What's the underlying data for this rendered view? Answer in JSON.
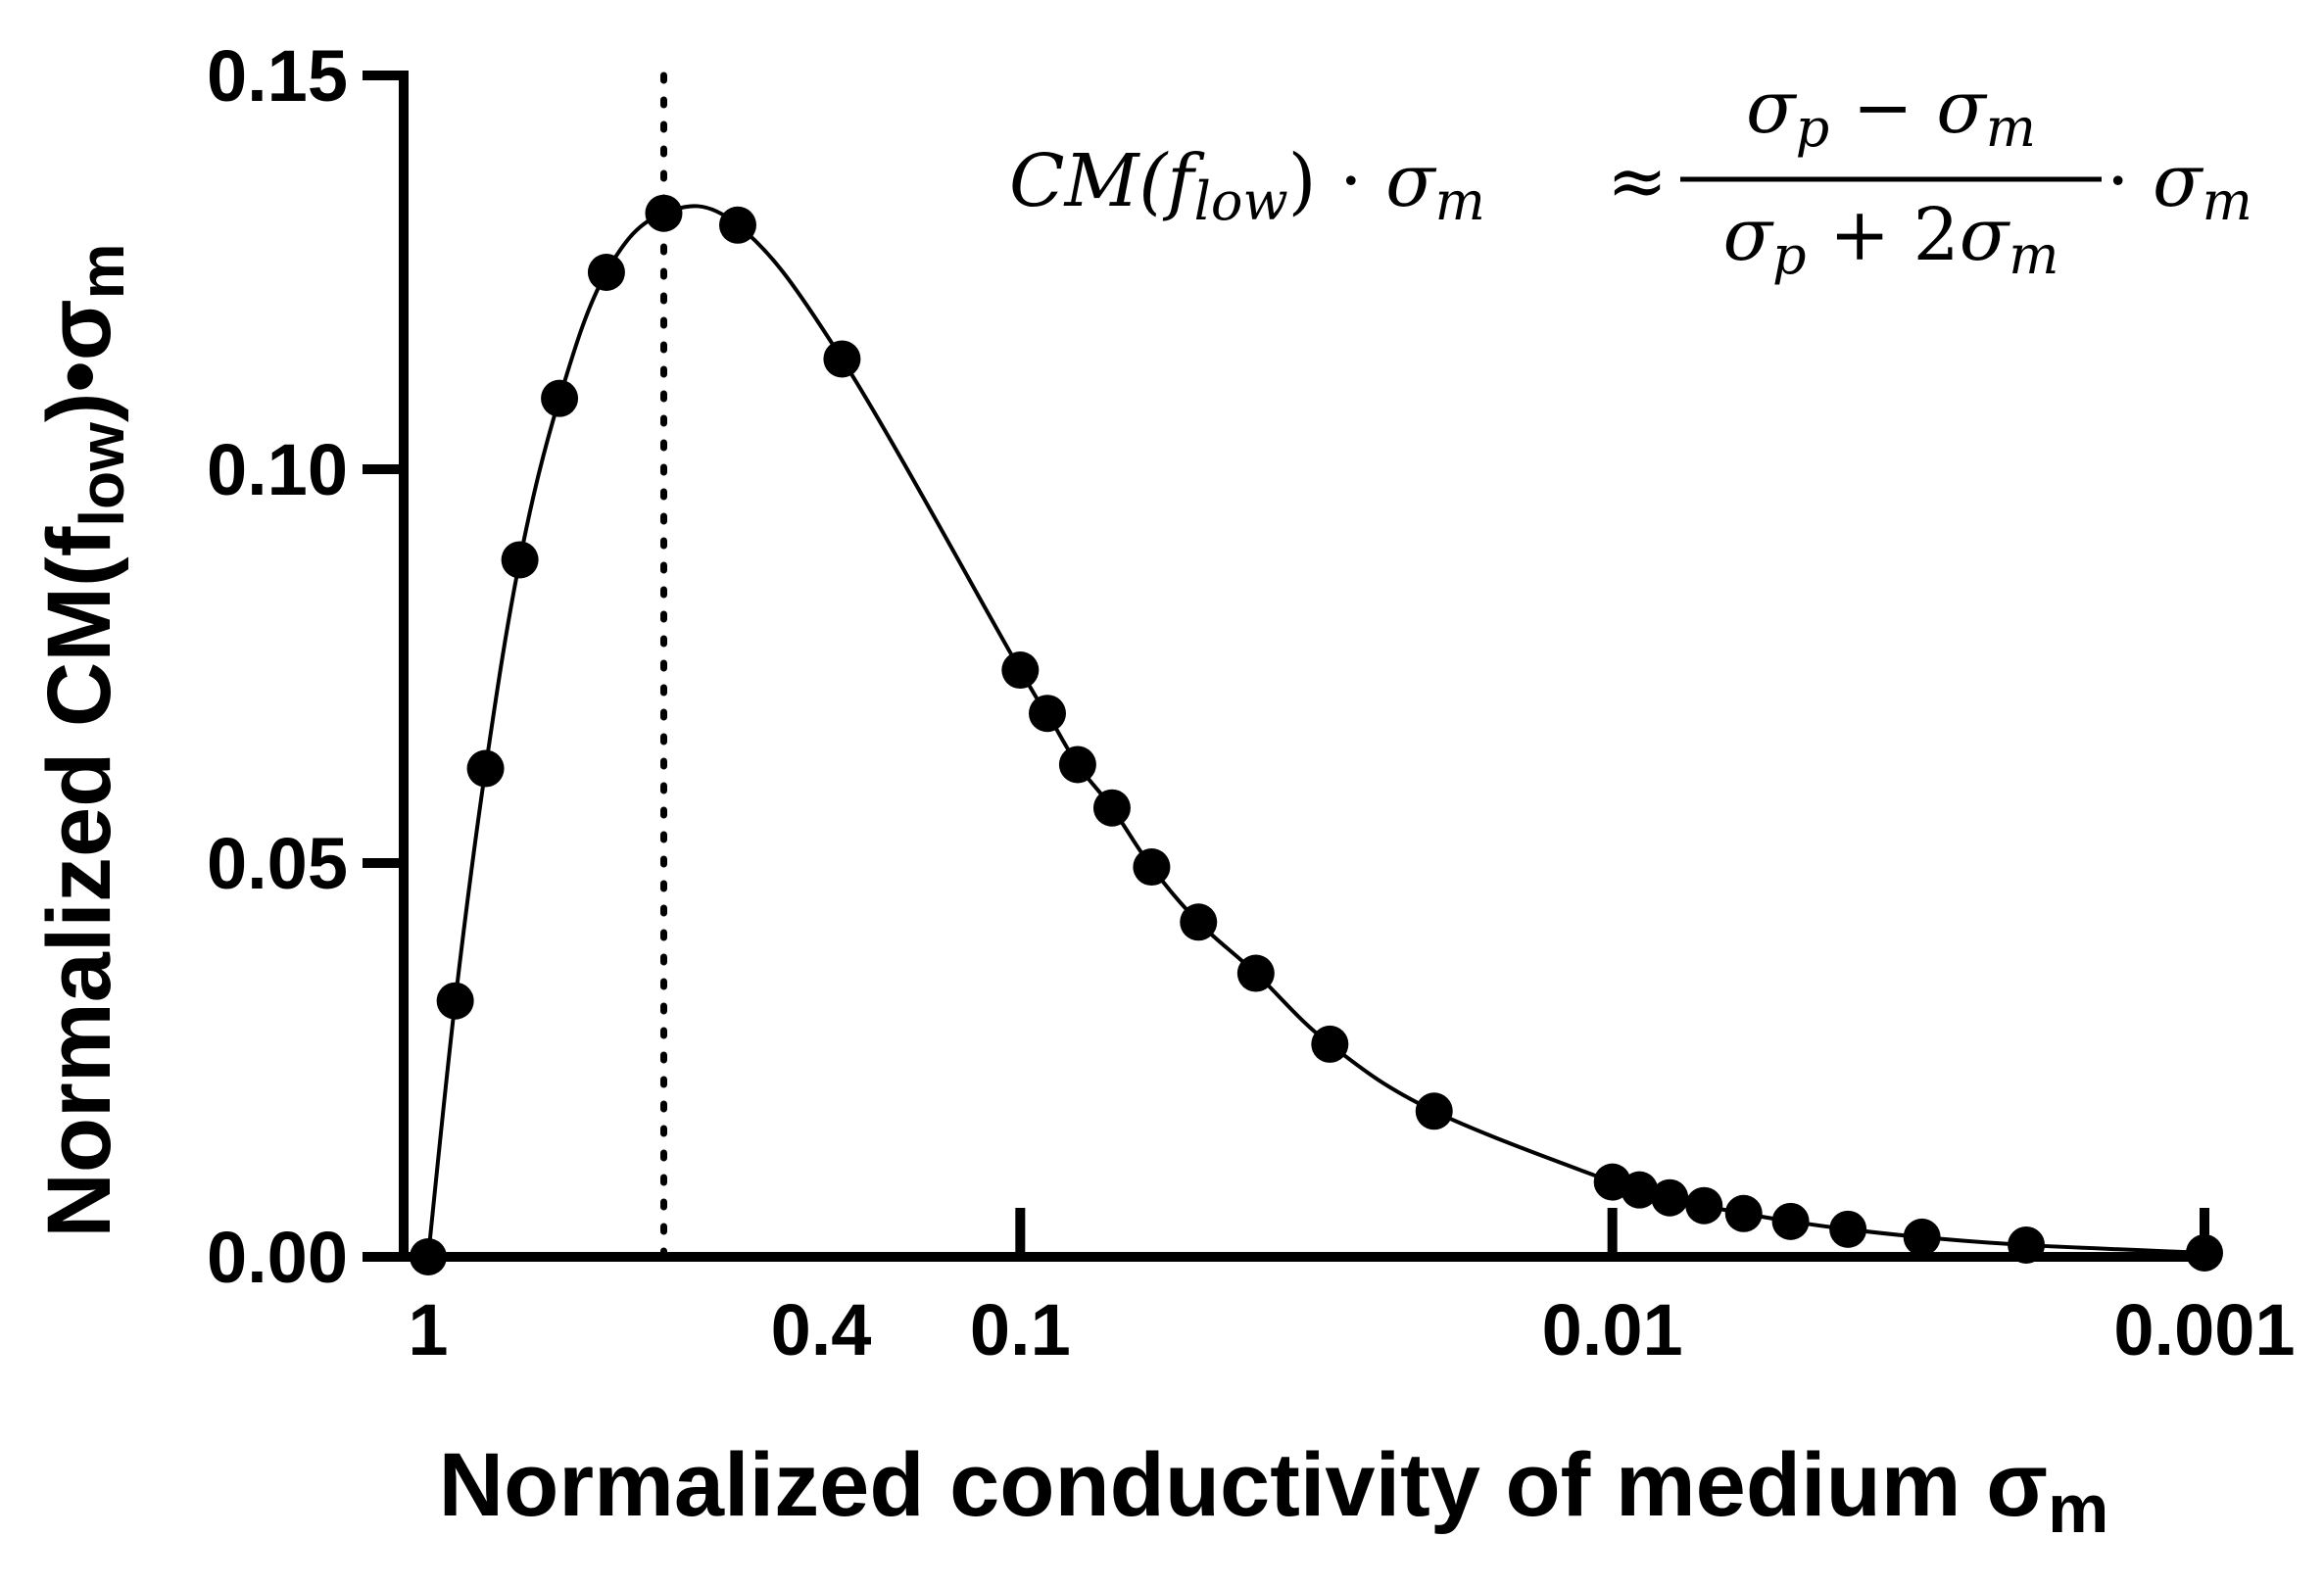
{
  "chart_data": {
    "type": "scatter",
    "title": "",
    "xlabel": "Normalized conductivity of medium",
    "xlabel_symbol": "σ",
    "xlabel_sub": "m",
    "ylabel_parts": {
      "pre": "Normalized CM(f",
      "sub1": "low",
      "mid": ")•σ",
      "sub2": "m"
    },
    "x_scale": "log-reversed",
    "xlim": [
      1,
      0.001
    ],
    "ylim": [
      0,
      0.15
    ],
    "x_ticks": [
      {
        "value": 1,
        "label": "1"
      },
      {
        "value": 0.4,
        "label": "0.4"
      },
      {
        "value": 0.1,
        "label": "0.1"
      },
      {
        "value": 0.01,
        "label": "0.01"
      },
      {
        "value": 0.001,
        "label": "0.001"
      }
    ],
    "y_ticks": [
      {
        "value": 0,
        "label": "0.00"
      },
      {
        "value": 0.05,
        "label": "0.05"
      },
      {
        "value": 0.1,
        "label": "0.10"
      },
      {
        "value": 0.15,
        "label": "0.15"
      }
    ],
    "reference_line": {
      "x": 0.4,
      "style": "dotted"
    },
    "series": [
      {
        "name": "Normalized CM(f_low)·σm",
        "x": [
          1,
          0.9,
          0.8,
          0.7,
          0.6,
          0.5,
          0.4,
          0.3,
          0.2,
          0.1,
          0.09,
          0.08,
          0.07,
          0.06,
          0.05,
          0.04,
          0.03,
          0.02,
          0.01,
          0.009,
          0.008,
          0.007,
          0.006,
          0.005,
          0.004,
          0.003,
          0.002,
          0.001
        ],
        "values": [
          0.0,
          0.0325,
          0.062,
          0.0885,
          0.109,
          0.125,
          0.1325,
          0.131,
          0.114,
          0.0745,
          0.069,
          0.0625,
          0.057,
          0.0495,
          0.0425,
          0.036,
          0.027,
          0.0185,
          0.0095,
          0.0085,
          0.0075,
          0.0065,
          0.0055,
          0.0045,
          0.0035,
          0.0025,
          0.0015,
          0.0005
        ]
      }
    ]
  },
  "equation": {
    "lhs_cm": "CM(",
    "lhs_f": "f",
    "lhs_f_sub": "low",
    "lhs_close": ") · ",
    "lhs_sigma": "σ",
    "lhs_sigma_sub": "m",
    "approx": "≈",
    "num_sigma_p": "σ",
    "num_p_sub": "p",
    "num_minus": " − ",
    "num_sigma_m": "σ",
    "num_m_sub": "m",
    "den_sigma_p": "σ",
    "den_p_sub": "p",
    "den_plus": " + 2",
    "den_sigma_m": "σ",
    "den_m_sub": "m",
    "rhs_dot": "· ",
    "rhs_sigma": "σ",
    "rhs_sub": "m"
  }
}
